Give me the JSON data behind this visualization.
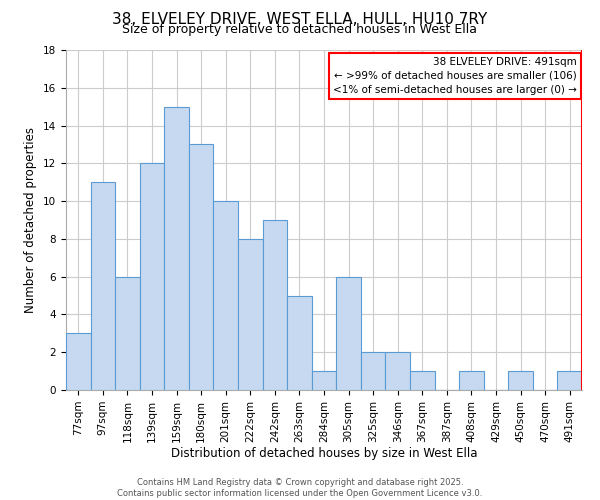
{
  "title1": "38, ELVELEY DRIVE, WEST ELLA, HULL, HU10 7RY",
  "title2": "Size of property relative to detached houses in West Ella",
  "xlabel": "Distribution of detached houses by size in West Ella",
  "ylabel": "Number of detached properties",
  "categories": [
    "77sqm",
    "97sqm",
    "118sqm",
    "139sqm",
    "159sqm",
    "180sqm",
    "201sqm",
    "222sqm",
    "242sqm",
    "263sqm",
    "284sqm",
    "305sqm",
    "325sqm",
    "346sqm",
    "367sqm",
    "387sqm",
    "408sqm",
    "429sqm",
    "450sqm",
    "470sqm",
    "491sqm"
  ],
  "values": [
    3,
    11,
    6,
    12,
    15,
    13,
    10,
    8,
    9,
    5,
    1,
    6,
    2,
    2,
    1,
    0,
    1,
    0,
    1,
    0,
    1
  ],
  "bar_color": "#c6d9f0",
  "bar_edge_color": "#5b9bd5",
  "annotation_title": "38 ELVELEY DRIVE: 491sqm",
  "annotation_line2": "← >99% of detached houses are smaller (106)",
  "annotation_line3": "<1% of semi-detached houses are larger (0) →",
  "ylim": [
    0,
    18
  ],
  "yticks": [
    0,
    2,
    4,
    6,
    8,
    10,
    12,
    14,
    16,
    18
  ],
  "footer": "Contains HM Land Registry data © Crown copyright and database right 2025.\nContains public sector information licensed under the Open Government Licence v3.0.",
  "bg_color": "#ffffff",
  "grid_color": "#cccccc",
  "title_fontsize": 11,
  "subtitle_fontsize": 9,
  "axis_label_fontsize": 8.5,
  "tick_fontsize": 7.5,
  "annotation_fontsize": 7.5,
  "footer_fontsize": 6
}
